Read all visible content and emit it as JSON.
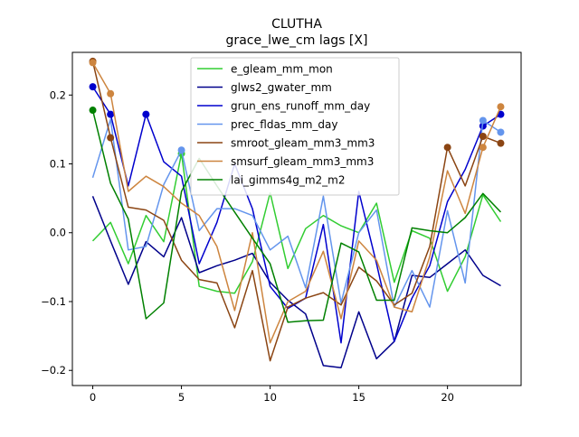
{
  "chart_data": {
    "type": "line",
    "title": "CLUTHA",
    "subtitle": "grace_lwe_cm lags [X]",
    "xlabel": "",
    "ylabel": "",
    "xlim": [
      -1.15,
      24.15
    ],
    "ylim": [
      -0.222,
      0.262
    ],
    "xticks": [
      0,
      5,
      10,
      15,
      20
    ],
    "yticks": [
      -0.2,
      -0.1,
      0.0,
      0.1,
      0.2
    ],
    "xtick_labels": [
      "0",
      "5",
      "10",
      "15",
      "20"
    ],
    "ytick_labels": [
      "−0.2",
      "−0.1",
      "0.0",
      "0.1",
      "0.2"
    ],
    "grid": false,
    "legend_position": "top-center",
    "x": [
      0,
      1,
      2,
      3,
      4,
      5,
      6,
      7,
      8,
      9,
      10,
      11,
      12,
      13,
      14,
      15,
      16,
      17,
      18,
      19,
      20,
      21,
      22,
      23
    ],
    "series": [
      {
        "name": "e_gleam_mm_mon",
        "color": "#32cd32",
        "values": [
          -0.012,
          0.015,
          -0.045,
          0.025,
          -0.013,
          0.115,
          -0.078,
          -0.085,
          -0.088,
          -0.042,
          0.058,
          -0.052,
          0.006,
          0.025,
          0.01,
          0.0,
          0.043,
          -0.072,
          0.003,
          -0.008,
          -0.085,
          -0.035,
          0.055,
          0.016
        ],
        "markers": [
          5
        ]
      },
      {
        "name": "glws2_gwater_mm",
        "color": "#00008b",
        "values": [
          0.053,
          -0.012,
          -0.075,
          -0.013,
          -0.035,
          0.022,
          -0.058,
          -0.048,
          -0.04,
          -0.03,
          -0.072,
          -0.098,
          -0.118,
          -0.193,
          -0.196,
          -0.115,
          -0.183,
          -0.158,
          -0.062,
          -0.065,
          -0.045,
          -0.025,
          -0.062,
          -0.077
        ],
        "markers": []
      },
      {
        "name": "grun_ens_runoff_mm_day",
        "color": "#0000cd",
        "values": [
          0.212,
          0.172,
          0.068,
          0.172,
          0.103,
          0.082,
          -0.045,
          0.015,
          0.1,
          0.035,
          -0.078,
          -0.11,
          -0.095,
          0.012,
          -0.16,
          0.06,
          -0.045,
          -0.158,
          -0.095,
          -0.048,
          0.045,
          0.092,
          0.155,
          0.172
        ],
        "markers": [
          0,
          1,
          3,
          22,
          23
        ]
      },
      {
        "name": "prec_fldas_mm_day",
        "color": "#6495ed",
        "values": [
          0.08,
          0.165,
          -0.025,
          -0.02,
          0.07,
          0.12,
          0.003,
          0.035,
          0.035,
          0.025,
          -0.025,
          -0.005,
          -0.08,
          0.053,
          -0.102,
          0.0,
          0.033,
          -0.108,
          -0.055,
          -0.108,
          0.032,
          -0.073,
          0.163,
          0.146
        ],
        "markers": [
          5,
          22,
          23
        ]
      },
      {
        "name": "smroot_gleam_mm3_mm3",
        "color": "#8b4513",
        "values": [
          0.249,
          0.138,
          0.037,
          0.033,
          0.018,
          -0.04,
          -0.068,
          -0.073,
          -0.138,
          -0.055,
          -0.186,
          -0.108,
          -0.095,
          -0.087,
          -0.105,
          -0.05,
          -0.07,
          -0.105,
          -0.088,
          -0.02,
          0.124,
          0.068,
          0.14,
          0.13
        ],
        "markers": [
          0,
          1,
          20,
          22,
          23
        ]
      },
      {
        "name": "smsurf_gleam_mm3_mm3",
        "color": "#cd853f",
        "values": [
          0.247,
          0.202,
          0.06,
          0.082,
          0.067,
          0.043,
          0.025,
          -0.02,
          -0.113,
          0.0,
          -0.16,
          -0.1,
          -0.085,
          -0.027,
          -0.125,
          -0.012,
          -0.04,
          -0.108,
          -0.115,
          -0.035,
          0.09,
          0.028,
          0.124,
          0.183
        ],
        "markers": [
          0,
          1,
          22,
          23
        ]
      },
      {
        "name": "lai_gimms4g_m2_m2",
        "color": "#008000",
        "values": [
          0.178,
          0.072,
          0.02,
          -0.125,
          -0.102,
          0.06,
          0.108,
          0.068,
          0.03,
          -0.008,
          -0.045,
          -0.13,
          -0.128,
          -0.127,
          -0.015,
          -0.028,
          -0.098,
          -0.098,
          0.007,
          0.003,
          0.0,
          0.022,
          0.057,
          0.03
        ],
        "markers": [
          0
        ]
      }
    ]
  }
}
